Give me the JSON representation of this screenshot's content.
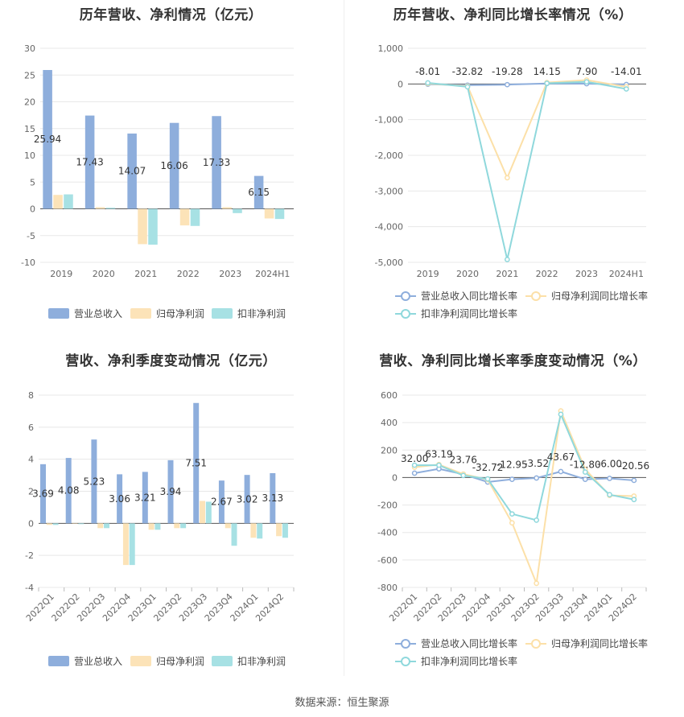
{
  "source": "数据来源：恒生聚源",
  "colors": {
    "revenue": "#8eaedc",
    "netprofit": "#fce3b8",
    "deducted": "#a7e1e4",
    "line_revenue": "#8eaedc",
    "line_netprofit": "#fce0a8",
    "line_deducted": "#8fd8dc"
  },
  "chart_data": [
    {
      "type": "bar",
      "title": "历年营收、净利情况（亿元）",
      "categories": [
        "2019",
        "2020",
        "2021",
        "2022",
        "2023",
        "2024H1"
      ],
      "ylim": [
        -10,
        30
      ],
      "yticks": [
        30,
        25,
        20,
        15,
        10,
        5,
        0,
        -5,
        -10
      ],
      "ytick_labels": [
        "30",
        "25",
        "20",
        "15",
        "10",
        "5",
        "0",
        "-5",
        "-10"
      ],
      "series": [
        {
          "name": "营业总收入",
          "values": [
            25.94,
            17.43,
            14.07,
            16.06,
            17.33,
            6.15
          ],
          "labels": [
            "25.94",
            "17.43",
            "14.07",
            "16.06",
            "17.33",
            "6.15"
          ]
        },
        {
          "name": "归母净利润",
          "values": [
            2.6,
            0.3,
            -6.6,
            -3.1,
            0.3,
            -1.8
          ]
        },
        {
          "name": "扣非净利润",
          "values": [
            2.7,
            0.2,
            -6.7,
            -3.2,
            -0.8,
            -1.9
          ]
        }
      ],
      "legend_position": "bottom"
    },
    {
      "type": "line",
      "title": "历年营收、净利同比增长率情况（%）",
      "categories": [
        "2019",
        "2020",
        "2021",
        "2022",
        "2023",
        "2024H1"
      ],
      "ylim": [
        -5000,
        1000
      ],
      "yticks": [
        1000,
        0,
        -1000,
        -2000,
        -3000,
        -4000,
        -5000
      ],
      "ytick_labels": [
        "1,000",
        "0",
        "-1,000",
        "-2,000",
        "-3,000",
        "-4,000",
        "-5,000"
      ],
      "series": [
        {
          "name": "营业总收入同比增长率",
          "values": [
            -8.01,
            -32.82,
            -19.28,
            14.15,
            7.9,
            -14.01
          ],
          "labels": [
            "-8.01",
            "-32.82",
            "-19.28",
            "14.15",
            "7.90",
            "-14.01"
          ]
        },
        {
          "name": "归母净利润同比增长率",
          "values": [
            10,
            -60,
            -2630,
            40,
            110,
            -80
          ]
        },
        {
          "name": "扣非净利润同比增长率",
          "values": [
            30,
            -80,
            -4920,
            20,
            60,
            -140
          ]
        }
      ],
      "legend_position": "bottom"
    },
    {
      "type": "bar",
      "title": "营收、净利季度变动情况（亿元）",
      "categories": [
        "2022Q1",
        "2022Q2",
        "2022Q3",
        "2022Q4",
        "2023Q1",
        "2023Q2",
        "2023Q3",
        "2023Q4",
        "2024Q1",
        "2024Q2"
      ],
      "ylim": [
        -4,
        8
      ],
      "yticks": [
        8,
        6,
        4,
        2,
        0,
        -2,
        -4
      ],
      "ytick_labels": [
        "8",
        "6",
        "4",
        "2",
        "0",
        "-2",
        "-4"
      ],
      "series": [
        {
          "name": "营业总收入",
          "values": [
            3.69,
            4.08,
            5.23,
            3.06,
            3.21,
            3.94,
            7.51,
            2.67,
            3.02,
            3.13
          ],
          "labels": [
            "3.69",
            "4.08",
            "5.23",
            "3.06",
            "3.21",
            "3.94",
            "7.51",
            "2.67",
            "3.02",
            "3.13"
          ]
        },
        {
          "name": "归母净利润",
          "values": [
            -0.1,
            0.0,
            -0.3,
            -2.6,
            -0.4,
            -0.3,
            1.4,
            -0.3,
            -0.9,
            -0.8
          ]
        },
        {
          "name": "扣非净利润",
          "values": [
            -0.1,
            -0.05,
            -0.3,
            -2.6,
            -0.4,
            -0.3,
            1.35,
            -1.4,
            -0.95,
            -0.9
          ]
        }
      ],
      "legend_position": "bottom"
    },
    {
      "type": "line",
      "title": "营收、净利同比增长率季度变动情况（%）",
      "categories": [
        "2022Q1",
        "2022Q2",
        "2022Q3",
        "2022Q4",
        "2023Q1",
        "2023Q2",
        "2023Q3",
        "2023Q4",
        "2024Q1",
        "2024Q2"
      ],
      "ylim": [
        -800,
        600
      ],
      "yticks": [
        600,
        400,
        200,
        0,
        -200,
        -400,
        -600,
        -800
      ],
      "ytick_labels": [
        "600",
        "400",
        "200",
        "0",
        "-200",
        "-400",
        "-600",
        "-800"
      ],
      "series": [
        {
          "name": "营业总收入同比增长率",
          "values": [
            32.0,
            63.19,
            23.76,
            -32.72,
            -12.95,
            -3.52,
            43.67,
            -12.8,
            -6.0,
            -20.56
          ],
          "labels": [
            "32.00",
            "63.19",
            "23.76",
            "-32.72",
            "-12.95",
            "-3.52",
            "43.67",
            "-12.80",
            "-6.00",
            "-20.56"
          ]
        },
        {
          "name": "归母净利润同比增长率",
          "values": [
            75,
            95,
            25,
            -15,
            -330,
            -770,
            485,
            60,
            -130,
            -135
          ]
        },
        {
          "name": "扣非净利润同比增长率",
          "values": [
            90,
            90,
            15,
            -10,
            -265,
            -310,
            460,
            40,
            -125,
            -160
          ]
        }
      ],
      "legend_position": "bottom"
    }
  ]
}
